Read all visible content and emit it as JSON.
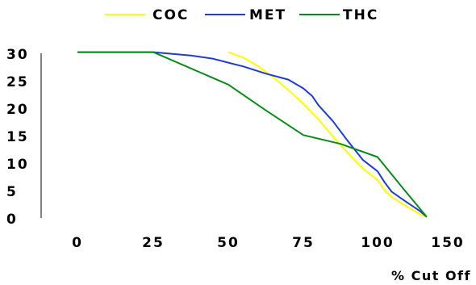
{
  "chart_data": {
    "type": "line",
    "title": "",
    "xlabel": "% Cut Off",
    "ylabel": "",
    "x_categories": [
      "0",
      "25",
      "50",
      "75",
      "100",
      "150"
    ],
    "ylim": [
      0,
      30
    ],
    "y_ticks": [
      0,
      5,
      10,
      15,
      20,
      25,
      30
    ],
    "grid": false,
    "legend_position": "top",
    "series": [
      {
        "name": "COC",
        "color": "#ffff00",
        "points": [
          [
            50,
            30.2
          ],
          [
            55,
            29.2
          ],
          [
            60,
            27.6
          ],
          [
            65,
            25.6
          ],
          [
            70,
            23.3
          ],
          [
            75,
            20.8
          ],
          [
            80,
            18.0
          ],
          [
            85,
            14.8
          ],
          [
            90,
            11.8
          ],
          [
            95,
            9.0
          ],
          [
            100,
            6.9
          ],
          [
            105,
            5.0
          ],
          [
            110,
            3.8
          ],
          [
            120,
            2.2
          ],
          [
            130,
            0.7
          ],
          [
            135,
            0.2
          ]
        ]
      },
      {
        "name": "MET",
        "color": "#1f3bd6",
        "points": [
          [
            0,
            30.2
          ],
          [
            25,
            30.2
          ],
          [
            37.5,
            29.6
          ],
          [
            45,
            29.0
          ],
          [
            50,
            28.3
          ],
          [
            55,
            27.6
          ],
          [
            62.5,
            26.3
          ],
          [
            70,
            25.2
          ],
          [
            75,
            23.6
          ],
          [
            78,
            22.2
          ],
          [
            80,
            20.6
          ],
          [
            85,
            17.6
          ],
          [
            90,
            14.0
          ],
          [
            95,
            10.6
          ],
          [
            100,
            8.5
          ],
          [
            105,
            6.5
          ],
          [
            110,
            4.8
          ],
          [
            120,
            3.0
          ],
          [
            130,
            1.3
          ],
          [
            135,
            0.2
          ]
        ]
      },
      {
        "name": "THC",
        "color": "#0a8a1a",
        "points": [
          [
            0,
            30.2
          ],
          [
            25,
            30.2
          ],
          [
            50,
            24.3
          ],
          [
            62.5,
            19.6
          ],
          [
            75,
            15.1
          ],
          [
            87.5,
            13.5
          ],
          [
            100,
            11.1
          ],
          [
            117.5,
            5.6
          ],
          [
            135,
            0.2
          ]
        ]
      }
    ]
  }
}
